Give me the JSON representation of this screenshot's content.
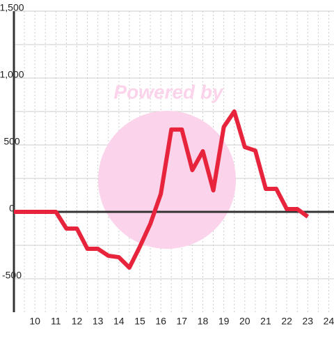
{
  "chart_data": {
    "type": "line",
    "watermark": "Powered by",
    "x": [
      9,
      9.5,
      10,
      10.5,
      11,
      11.5,
      12,
      12.5,
      13,
      13.5,
      14,
      14.5,
      15,
      15.5,
      16,
      16.5,
      17,
      17.5,
      18,
      18.5,
      19,
      19.5,
      20,
      20.5,
      21,
      21.5,
      22,
      22.5,
      23
    ],
    "series": [
      {
        "color": "#e8243c",
        "values": [
          0,
          0,
          0,
          0,
          0,
          -125,
          -125,
          -276,
          -276,
          -328,
          -339,
          -417,
          -260,
          -89,
          135,
          615,
          615,
          312,
          453,
          161,
          635,
          750,
          484,
          458,
          172,
          172,
          21,
          21,
          -36
        ]
      }
    ],
    "xlim": [
      9,
      24.25
    ],
    "xticks": [
      10,
      11,
      12,
      13,
      14,
      15,
      16,
      17,
      18,
      19,
      20,
      21,
      22,
      23,
      24
    ],
    "ylim": [
      -750,
      1500
    ],
    "yticks": [
      -500,
      0,
      500,
      {
        "value": 1000,
        "label": "1,000"
      },
      {
        "value": 1500,
        "label": "1,500"
      }
    ],
    "grid": true
  }
}
